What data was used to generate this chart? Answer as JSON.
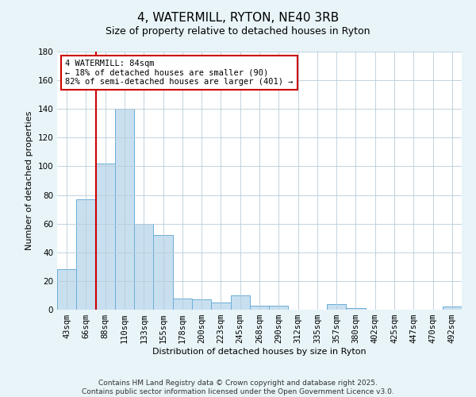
{
  "title": "4, WATERMILL, RYTON, NE40 3RB",
  "subtitle": "Size of property relative to detached houses in Ryton",
  "xlabel": "Distribution of detached houses by size in Ryton",
  "ylabel": "Number of detached properties",
  "bar_labels": [
    "43sqm",
    "66sqm",
    "88sqm",
    "110sqm",
    "133sqm",
    "155sqm",
    "178sqm",
    "200sqm",
    "223sqm",
    "245sqm",
    "268sqm",
    "290sqm",
    "312sqm",
    "335sqm",
    "357sqm",
    "380sqm",
    "402sqm",
    "425sqm",
    "447sqm",
    "470sqm",
    "492sqm"
  ],
  "bar_values": [
    28,
    77,
    102,
    140,
    60,
    52,
    8,
    7,
    5,
    10,
    3,
    3,
    0,
    0,
    4,
    1,
    0,
    0,
    0,
    0,
    2
  ],
  "bar_color": "#c8dff0",
  "bar_edge_color": "#6baed6",
  "bar_width": 1.0,
  "marker_line_color": "#cc0000",
  "annotation_line1": "4 WATERMILL: 84sqm",
  "annotation_line2": "← 18% of detached houses are smaller (90)",
  "annotation_line3": "82% of semi-detached houses are larger (401) →",
  "annotation_box_color": "#ffffff",
  "annotation_box_edge": "#cc0000",
  "ylim": [
    0,
    180
  ],
  "yticks": [
    0,
    20,
    40,
    60,
    80,
    100,
    120,
    140,
    160,
    180
  ],
  "footer_line1": "Contains HM Land Registry data © Crown copyright and database right 2025.",
  "footer_line2": "Contains public sector information licensed under the Open Government Licence v3.0.",
  "bg_color": "#e8f4f8",
  "plot_bg_color": "#ffffff",
  "title_fontsize": 11,
  "axis_label_fontsize": 8,
  "tick_fontsize": 7.5,
  "footer_fontsize": 6.5
}
